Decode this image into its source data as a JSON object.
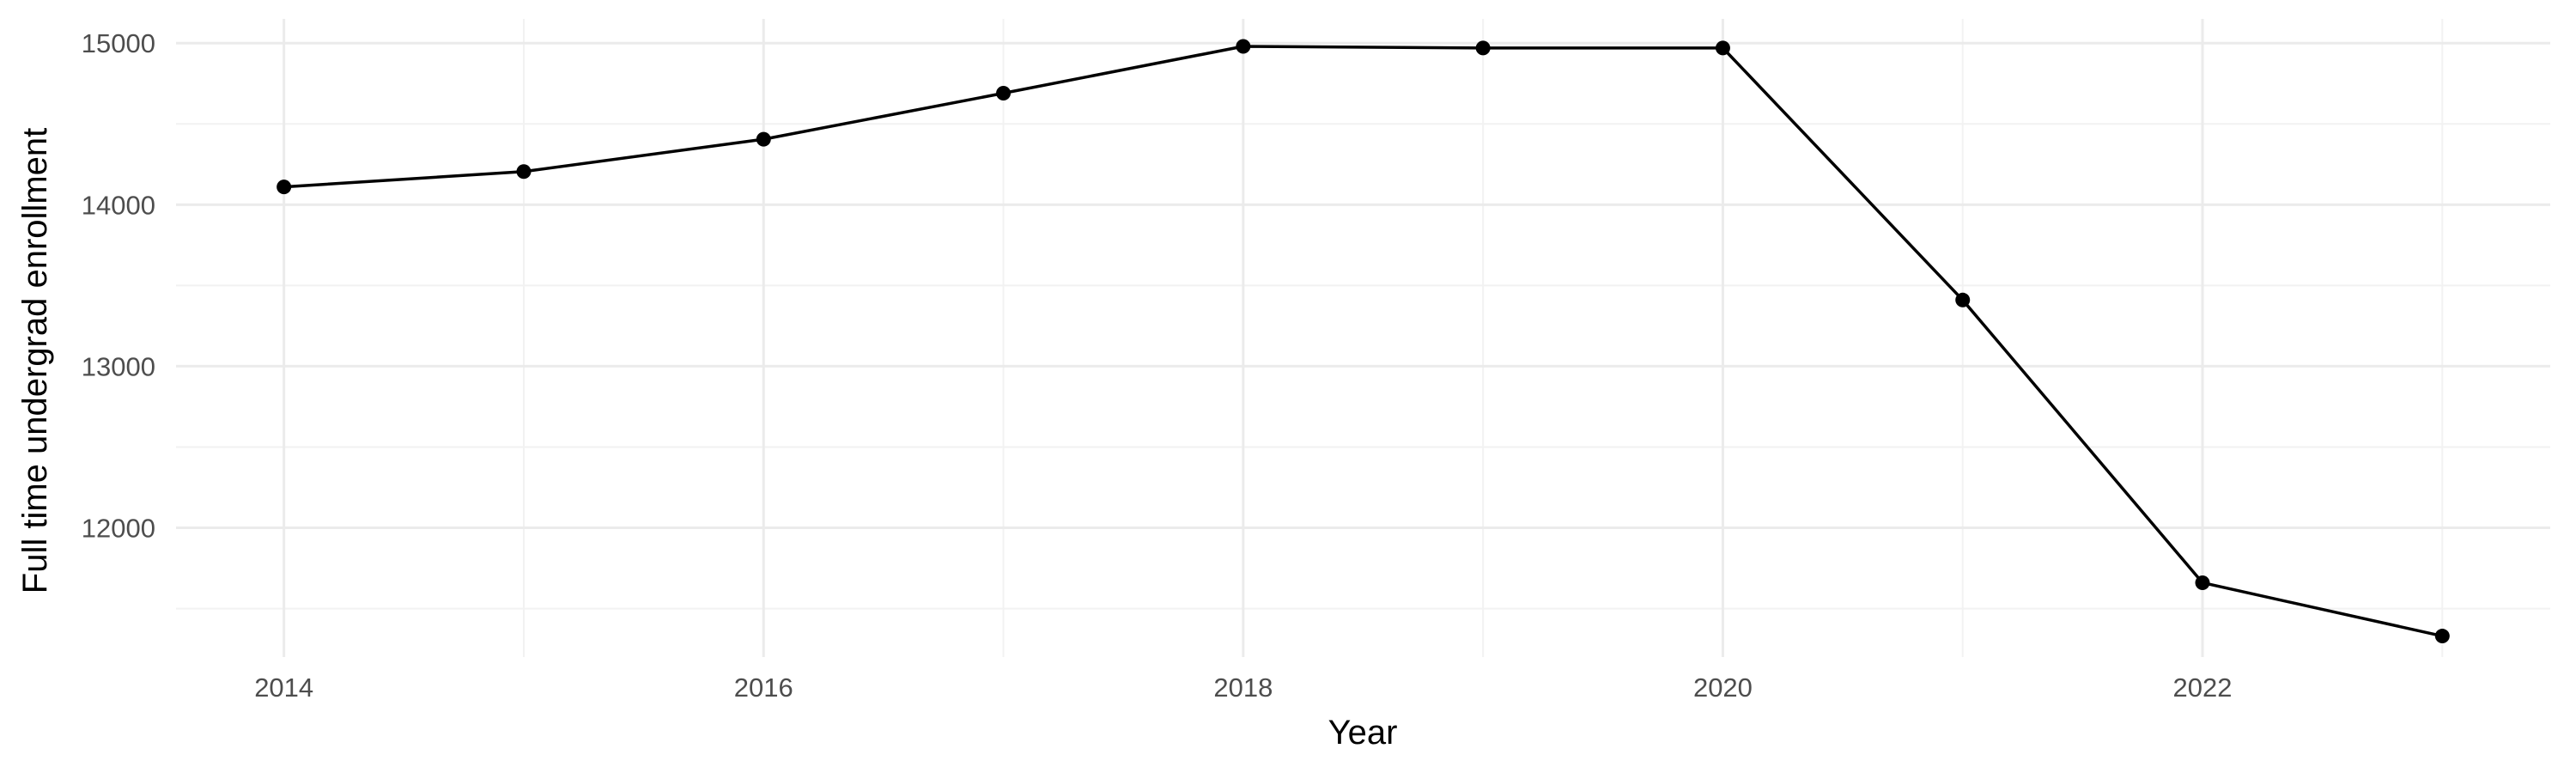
{
  "chart_data": {
    "type": "line",
    "title": "",
    "xlabel": "Year",
    "ylabel": "Full time undergrad enrollment",
    "x": [
      2014,
      2015,
      2016,
      2017,
      2018,
      2019,
      2020,
      2021,
      2022,
      2023
    ],
    "series": [
      {
        "values": [
          14110,
          14205,
          14405,
          14690,
          14980,
          14970,
          14970,
          13410,
          11660,
          11330
        ]
      }
    ],
    "xlim": [
      2013.55,
      2023.45
    ],
    "ylim": [
      11200,
      15150
    ],
    "x_ticks": [
      2014,
      2016,
      2018,
      2020,
      2022
    ],
    "x_tick_labels": [
      "2014",
      "2016",
      "2018",
      "2020",
      "2022"
    ],
    "y_ticks": [
      12000,
      13000,
      14000,
      15000
    ],
    "y_tick_labels": [
      "12000",
      "13000",
      "14000",
      "15000"
    ],
    "grid": true,
    "legend": "none",
    "colors": {
      "line": "#000000",
      "point": "#000000",
      "grid_major": "#ebebeb",
      "grid_minor": "#f2f2f2",
      "tick_text": "#4d4d4d"
    }
  }
}
